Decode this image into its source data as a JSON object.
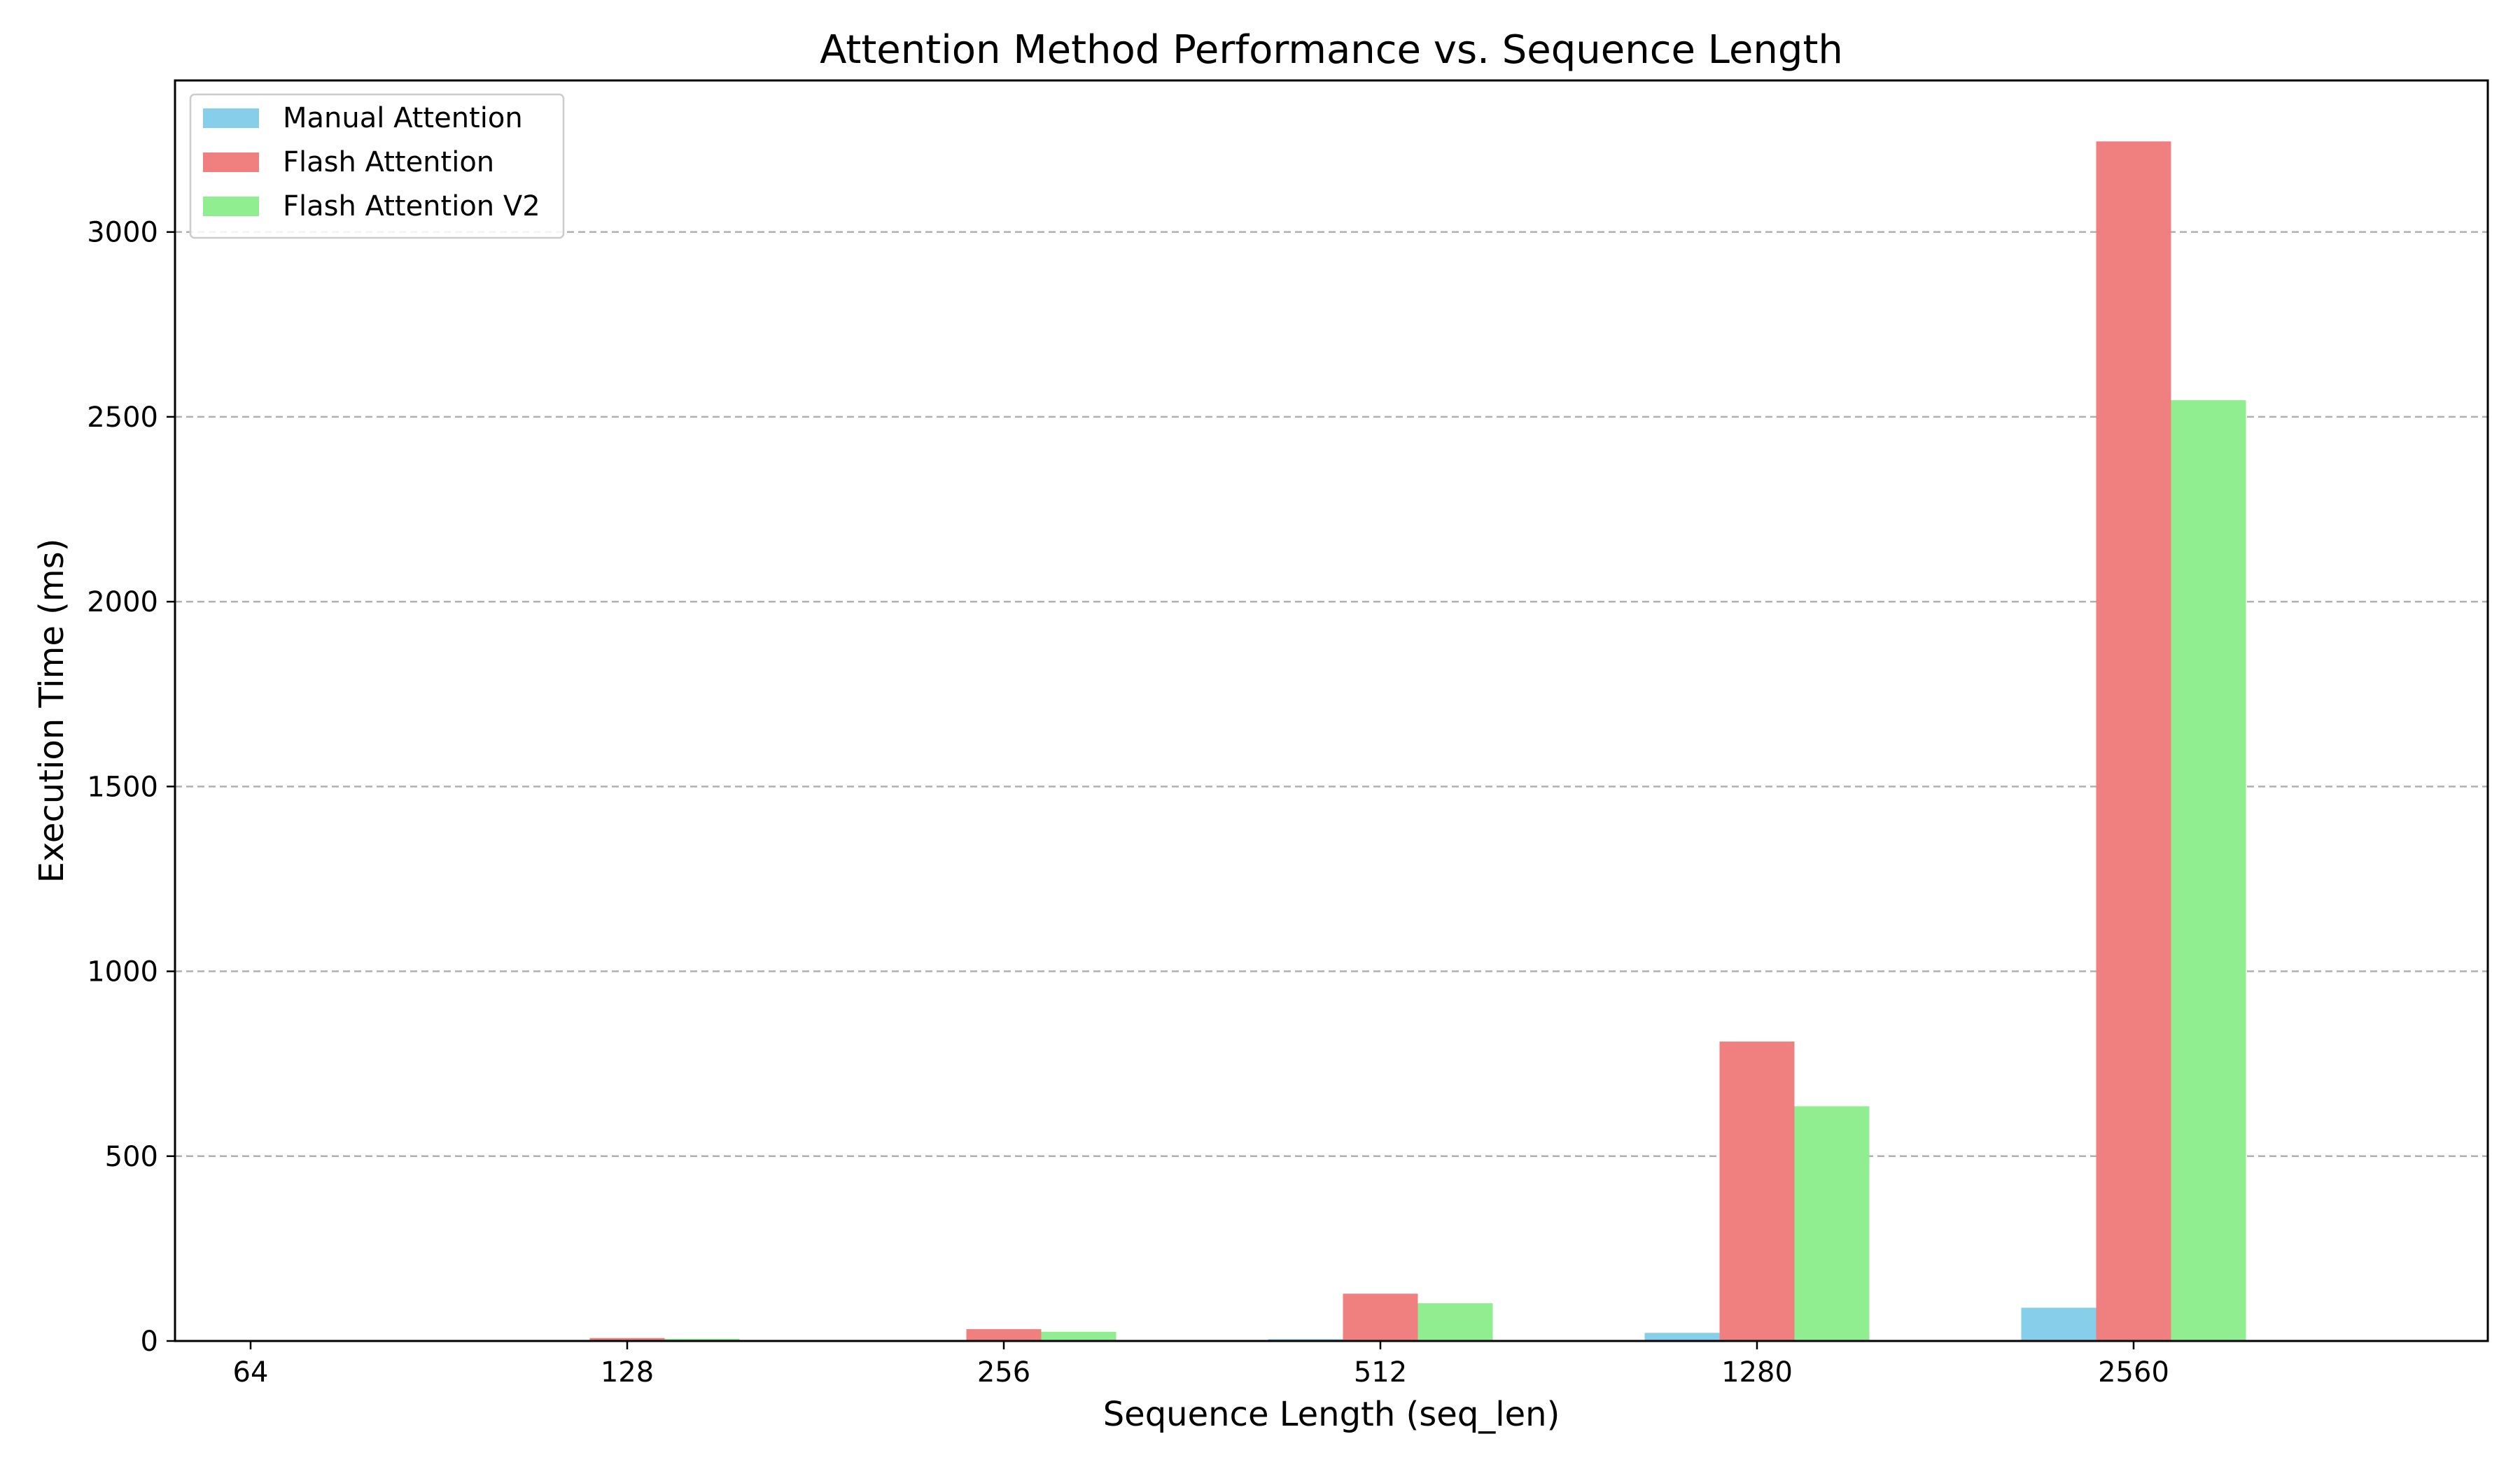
{
  "chart_data": {
    "type": "bar",
    "title": "Attention Method Performance vs. Sequence Length",
    "xlabel": "Sequence Length (seq_len)",
    "ylabel": "Execution Time (ms)",
    "categories": [
      "64",
      "128",
      "256",
      "512",
      "1280",
      "2560"
    ],
    "series": [
      {
        "name": "Manual Attention",
        "color": "#87CEEB",
        "values": [
          0.2,
          0.5,
          1.5,
          5,
          22,
          90
        ]
      },
      {
        "name": "Flash Attention",
        "color": "#F08080",
        "values": [
          2,
          8,
          32,
          128,
          810,
          3245
        ]
      },
      {
        "name": "Flash Attention V2",
        "color": "#90EE90",
        "values": [
          1.5,
          6,
          25,
          102,
          635,
          2545
        ]
      }
    ],
    "ylim": [
      0,
      3410
    ],
    "yticks": [
      0,
      500,
      1000,
      1500,
      2000,
      2500,
      3000
    ],
    "grid": {
      "y": true,
      "style": "dashed",
      "color": "#b0b0b0"
    },
    "legend": {
      "position": "top-left"
    }
  }
}
